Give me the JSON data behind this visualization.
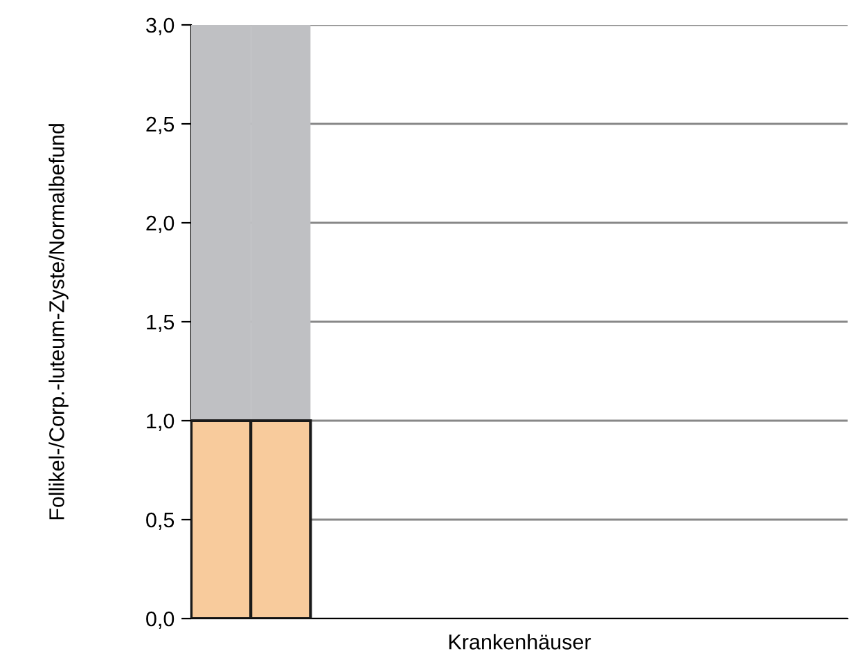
{
  "chart_data": {
    "type": "bar",
    "stacked": true,
    "xlabel": "Krankenhäuser",
    "ylabel": "Follikel-/Corp.-luteum-Zyste/Normalbefund",
    "categories": [
      null,
      null,
      null,
      null,
      null,
      null,
      null,
      null,
      null,
      null,
      null
    ],
    "series": [
      {
        "color": "#f8cb9c",
        "values": [
          1.0,
          1.0,
          null,
          null,
          null,
          null,
          null,
          null,
          null,
          null,
          null
        ]
      },
      {
        "color": "#bfc0c3",
        "values": [
          2.0,
          2.0,
          null,
          null,
          null,
          null,
          null,
          null,
          null,
          null,
          null
        ]
      }
    ],
    "ylim": [
      0,
      3
    ],
    "yticks": [
      {
        "value": 0,
        "label": "0,0"
      },
      {
        "value": 0.5,
        "label": "0,5"
      },
      {
        "value": 1,
        "label": "1,0"
      },
      {
        "value": 1.5,
        "label": "1,5"
      },
      {
        "value": 2,
        "label": "2,0"
      },
      {
        "value": 2.5,
        "label": "2,5"
      },
      {
        "value": 3,
        "label": "3,0"
      }
    ],
    "grid": "y",
    "legend": false,
    "tick_labels": "y"
  }
}
